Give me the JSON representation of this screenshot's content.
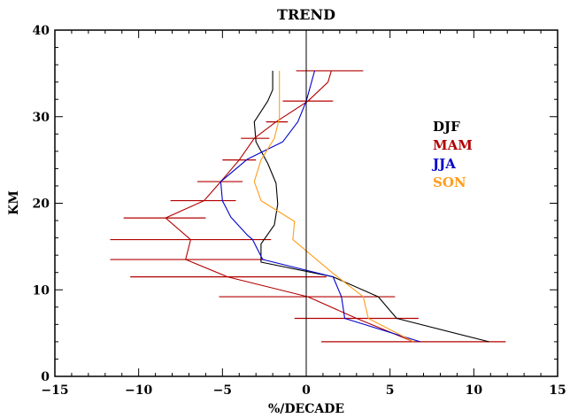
{
  "chart_data": {
    "type": "line",
    "title": "TREND",
    "xlabel": "%/DECADE",
    "ylabel": "KM",
    "xlim": [
      -15,
      15
    ],
    "ylim": [
      0,
      40
    ],
    "x_ticks": [
      -15,
      -10,
      -5,
      0,
      5,
      10,
      15
    ],
    "x_tick_labels": [
      "−15",
      "−10",
      "−5",
      "0",
      "5",
      "10",
      "15"
    ],
    "y_ticks": [
      0,
      10,
      20,
      30,
      40
    ],
    "y_tick_labels": [
      "0",
      "10",
      "20",
      "30",
      "40"
    ],
    "zero_line": 0,
    "grid": false,
    "legend_position": "right",
    "series": [
      {
        "name": "DJF",
        "color": "#000000",
        "points": [
          {
            "x": 10.9,
            "y": 4.0
          },
          {
            "x": 5.4,
            "y": 6.7
          },
          {
            "x": 4.3,
            "y": 9.2
          },
          {
            "x": 1.6,
            "y": 11.5
          },
          {
            "x": -2.7,
            "y": 13.2
          },
          {
            "x": -2.7,
            "y": 15.3
          },
          {
            "x": -1.9,
            "y": 17.5
          },
          {
            "x": -1.7,
            "y": 19.9
          },
          {
            "x": -1.8,
            "y": 22.3
          },
          {
            "x": -2.3,
            "y": 24.6
          },
          {
            "x": -3.0,
            "y": 27.1
          },
          {
            "x": -3.1,
            "y": 29.4
          },
          {
            "x": -2.3,
            "y": 31.8
          },
          {
            "x": -2.0,
            "y": 33.1
          },
          {
            "x": -2.0,
            "y": 35.3
          }
        ]
      },
      {
        "name": "MAM",
        "color": "#b30000",
        "points": [
          {
            "x": 6.4,
            "y": 4.0
          },
          {
            "x": 3.0,
            "y": 6.7
          },
          {
            "x": 0.1,
            "y": 9.2
          },
          {
            "x": -4.7,
            "y": 11.5
          },
          {
            "x": -7.2,
            "y": 13.5
          },
          {
            "x": -6.9,
            "y": 15.8
          },
          {
            "x": -8.4,
            "y": 18.3
          },
          {
            "x": -6.1,
            "y": 20.3
          },
          {
            "x": -5.1,
            "y": 22.5
          },
          {
            "x": -4.0,
            "y": 25.0
          },
          {
            "x": -3.1,
            "y": 27.5
          },
          {
            "x": -1.8,
            "y": 29.4
          },
          {
            "x": 0.1,
            "y": 31.8
          },
          {
            "x": 1.3,
            "y": 34.0
          },
          {
            "x": 1.5,
            "y": 35.3
          }
        ]
      },
      {
        "name": "JJA",
        "color": "#0000cc",
        "points": [
          {
            "x": 6.8,
            "y": 4.0
          },
          {
            "x": 2.3,
            "y": 6.7
          },
          {
            "x": 2.1,
            "y": 9.2
          },
          {
            "x": 1.6,
            "y": 11.5
          },
          {
            "x": -2.6,
            "y": 13.5
          },
          {
            "x": -3.2,
            "y": 15.8
          },
          {
            "x": -3.5,
            "y": 16.3
          },
          {
            "x": -4.5,
            "y": 18.4
          },
          {
            "x": -5.0,
            "y": 20.3
          },
          {
            "x": -5.1,
            "y": 22.5
          },
          {
            "x": -3.5,
            "y": 25.1
          },
          {
            "x": -1.4,
            "y": 27.1
          },
          {
            "x": -0.5,
            "y": 29.4
          },
          {
            "x": 0.0,
            "y": 31.8
          },
          {
            "x": 0.5,
            "y": 35.3
          }
        ]
      },
      {
        "name": "SON",
        "color": "#ff9d1c",
        "points": [
          {
            "x": 6.4,
            "y": 4.0
          },
          {
            "x": 3.7,
            "y": 6.7
          },
          {
            "x": 3.4,
            "y": 9.2
          },
          {
            "x": 1.6,
            "y": 11.9
          },
          {
            "x": -0.8,
            "y": 15.8
          },
          {
            "x": -0.7,
            "y": 17.9
          },
          {
            "x": -2.7,
            "y": 20.3
          },
          {
            "x": -3.1,
            "y": 22.5
          },
          {
            "x": -2.7,
            "y": 25.0
          },
          {
            "x": -1.9,
            "y": 27.5
          },
          {
            "x": -1.6,
            "y": 29.9
          },
          {
            "x": -1.6,
            "y": 32.1
          },
          {
            "x": -1.6,
            "y": 35.3
          }
        ]
      }
    ],
    "error_bars": {
      "series": "MAM",
      "color": "#b30000",
      "bars": [
        {
          "y": 4.0,
          "low": 0.9,
          "high": 11.9
        },
        {
          "y": 6.7,
          "low": -0.7,
          "high": 6.7
        },
        {
          "y": 9.2,
          "low": -5.2,
          "high": 5.3
        },
        {
          "y": 11.5,
          "low": -10.5,
          "high": 1.2
        },
        {
          "y": 13.5,
          "low": -11.7,
          "high": -2.5
        },
        {
          "y": 15.8,
          "low": -11.7,
          "high": -2.1
        },
        {
          "y": 18.3,
          "low": -10.9,
          "high": -6.0
        },
        {
          "y": 20.3,
          "low": -8.1,
          "high": -4.2
        },
        {
          "y": 22.5,
          "low": -6.5,
          "high": -3.8
        },
        {
          "y": 25.0,
          "low": -5.0,
          "high": -3.0
        },
        {
          "y": 27.5,
          "low": -3.9,
          "high": -2.2
        },
        {
          "y": 29.4,
          "low": -2.4,
          "high": -1.1
        },
        {
          "y": 31.8,
          "low": -1.4,
          "high": 1.6
        },
        {
          "y": 35.3,
          "low": -0.6,
          "high": 3.4
        }
      ]
    }
  }
}
